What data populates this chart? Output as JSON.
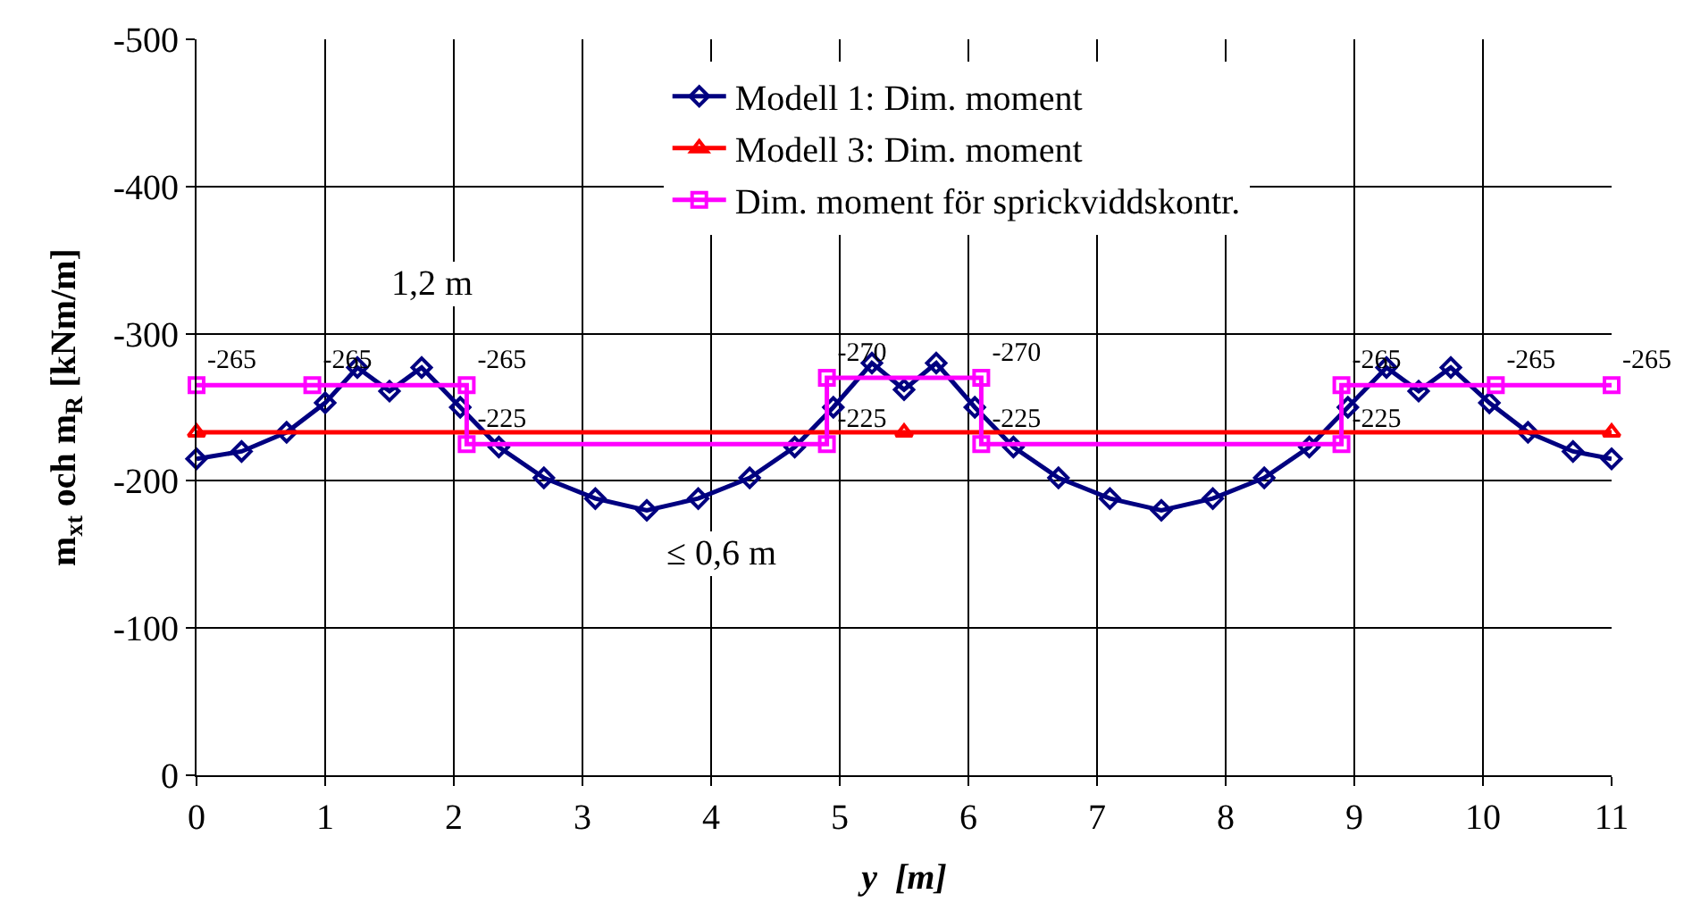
{
  "chart_data": {
    "type": "line",
    "xlabel": "y  [m]",
    "ylabel": "m$_{xt}$ och m$_{R}$ [kNm/m]",
    "xlim": [
      0,
      11
    ],
    "xticks": [
      0,
      1,
      2,
      3,
      4,
      5,
      6,
      7,
      8,
      9,
      10,
      11
    ],
    "ylim": [
      0,
      -500
    ],
    "yticks": [
      0,
      -100,
      -200,
      -300,
      -400,
      -500
    ],
    "grid": true,
    "legend": "top",
    "series": [
      {
        "name": "Modell 1: Dim. moment",
        "color": "#000080",
        "marker": "diamond",
        "x": [
          0,
          0.35,
          0.7,
          1.0,
          1.25,
          1.5,
          1.75,
          2.05,
          2.35,
          2.7,
          3.1,
          3.5,
          3.9,
          4.3,
          4.65,
          4.95,
          5.25,
          5.5,
          5.75,
          6.05,
          6.35,
          6.7,
          7.1,
          7.5,
          7.9,
          8.3,
          8.65,
          8.95,
          9.25,
          9.5,
          9.75,
          10.05,
          10.35,
          10.7,
          11
        ],
        "values": [
          -215,
          -220,
          -233,
          -253,
          -277,
          -261,
          -277,
          -250,
          -223,
          -202,
          -188,
          -180,
          -188,
          -202,
          -223,
          -250,
          -280,
          -262,
          -280,
          -250,
          -223,
          -202,
          -188,
          -180,
          -188,
          -202,
          -223,
          -250,
          -277,
          -261,
          -277,
          -253,
          -233,
          -220,
          -215
        ]
      },
      {
        "name": "Modell 3: Dim. moment",
        "color": "#ff0000",
        "marker": "triangle",
        "x": [
          0,
          5.5,
          11
        ],
        "values": [
          -233,
          -233,
          -233
        ]
      },
      {
        "name": "Dim. moment för sprickviddskontr.",
        "color": "#ff00ff",
        "marker": "square",
        "data_labels": true,
        "x": [
          0,
          0.9,
          2.1,
          2.1,
          4.9,
          4.9,
          6.1,
          6.1,
          8.9,
          8.9,
          10.1,
          11
        ],
        "values": [
          -265,
          -265,
          -265,
          -225,
          -225,
          -270,
          -270,
          -225,
          -225,
          -265,
          -265,
          -265
        ]
      }
    ],
    "annotations": [
      "1,2 m",
      "≤ 0,6 m"
    ]
  }
}
